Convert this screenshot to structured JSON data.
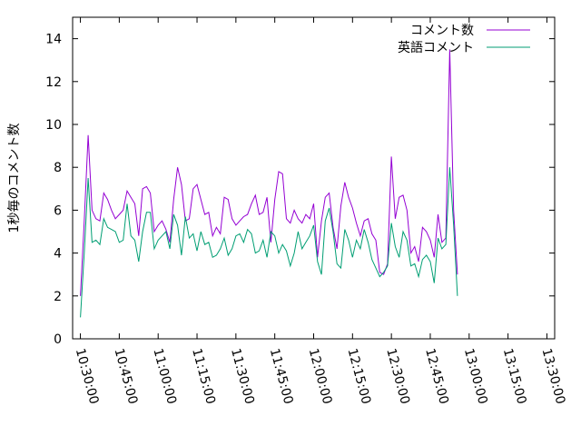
{
  "chart_data": {
    "type": "line",
    "ylabel": "1秒毎のコメント数",
    "ylim": [
      0,
      15
    ],
    "yticks": [
      0,
      2,
      4,
      6,
      8,
      10,
      12,
      14
    ],
    "xticks": [
      "10:30:00",
      "10:45:00",
      "11:00:00",
      "11:15:00",
      "11:30:00",
      "11:45:00",
      "12:00:00",
      "12:15:00",
      "12:30:00",
      "12:45:00",
      "13:00:00",
      "13:15:00",
      "13:30:00"
    ],
    "xlim": [
      "10:27:00",
      "13:33:00"
    ],
    "legend_position": "top-right",
    "grid": false,
    "series": [
      {
        "name": "コメント数",
        "color": "#9400d3",
        "points": [
          [
            "10:30:00",
            2.0
          ],
          [
            "10:31:30",
            5.5
          ],
          [
            "10:33:00",
            9.5
          ],
          [
            "10:34:30",
            6.0
          ],
          [
            "10:36:00",
            5.6
          ],
          [
            "10:37:30",
            5.5
          ],
          [
            "10:39:00",
            6.8
          ],
          [
            "10:40:30",
            6.5
          ],
          [
            "10:42:00",
            6.0
          ],
          [
            "10:43:30",
            5.6
          ],
          [
            "10:45:00",
            5.8
          ],
          [
            "10:46:30",
            6.0
          ],
          [
            "10:48:00",
            6.9
          ],
          [
            "10:49:30",
            6.6
          ],
          [
            "10:51:00",
            6.3
          ],
          [
            "10:52:30",
            4.8
          ],
          [
            "10:54:00",
            7.0
          ],
          [
            "10:55:30",
            7.1
          ],
          [
            "10:57:00",
            6.8
          ],
          [
            "10:58:30",
            5.0
          ],
          [
            "11:00:00",
            5.3
          ],
          [
            "11:01:30",
            5.5
          ],
          [
            "11:03:00",
            5.1
          ],
          [
            "11:04:30",
            4.5
          ],
          [
            "11:06:00",
            6.5
          ],
          [
            "11:07:30",
            8.0
          ],
          [
            "11:09:00",
            7.2
          ],
          [
            "11:10:30",
            5.5
          ],
          [
            "11:12:00",
            5.6
          ],
          [
            "11:13:30",
            7.0
          ],
          [
            "11:15:00",
            7.2
          ],
          [
            "11:16:30",
            6.5
          ],
          [
            "11:18:00",
            5.8
          ],
          [
            "11:19:30",
            5.9
          ],
          [
            "11:21:00",
            4.8
          ],
          [
            "11:22:30",
            5.2
          ],
          [
            "11:24:00",
            4.9
          ],
          [
            "11:25:30",
            6.6
          ],
          [
            "11:27:00",
            6.5
          ],
          [
            "11:28:30",
            5.6
          ],
          [
            "11:30:00",
            5.3
          ],
          [
            "11:31:30",
            5.5
          ],
          [
            "11:33:00",
            5.7
          ],
          [
            "11:34:30",
            5.8
          ],
          [
            "11:36:00",
            6.3
          ],
          [
            "11:37:30",
            6.7
          ],
          [
            "11:39:00",
            5.8
          ],
          [
            "11:40:30",
            5.9
          ],
          [
            "11:42:00",
            6.6
          ],
          [
            "11:43:30",
            4.5
          ],
          [
            "11:45:00",
            6.5
          ],
          [
            "11:46:30",
            7.8
          ],
          [
            "11:48:00",
            7.7
          ],
          [
            "11:49:30",
            5.6
          ],
          [
            "11:51:00",
            5.4
          ],
          [
            "11:52:30",
            6.0
          ],
          [
            "11:54:00",
            5.6
          ],
          [
            "11:55:30",
            5.4
          ],
          [
            "11:57:00",
            5.8
          ],
          [
            "11:58:30",
            5.6
          ],
          [
            "12:00:00",
            6.3
          ],
          [
            "12:01:30",
            3.8
          ],
          [
            "12:03:00",
            5.5
          ],
          [
            "12:04:30",
            6.6
          ],
          [
            "12:06:00",
            6.8
          ],
          [
            "12:07:30",
            5.2
          ],
          [
            "12:09:00",
            4.2
          ],
          [
            "12:10:30",
            6.2
          ],
          [
            "12:12:00",
            7.3
          ],
          [
            "12:13:30",
            6.6
          ],
          [
            "12:15:00",
            6.1
          ],
          [
            "12:16:30",
            5.4
          ],
          [
            "12:18:00",
            4.8
          ],
          [
            "12:19:30",
            5.5
          ],
          [
            "12:21:00",
            5.6
          ],
          [
            "12:22:30",
            4.9
          ],
          [
            "12:24:00",
            4.6
          ],
          [
            "12:25:30",
            3.1
          ],
          [
            "12:27:00",
            3.0
          ],
          [
            "12:28:30",
            3.5
          ],
          [
            "12:30:00",
            8.5
          ],
          [
            "12:31:30",
            5.6
          ],
          [
            "12:33:00",
            6.6
          ],
          [
            "12:34:30",
            6.7
          ],
          [
            "12:36:00",
            6.0
          ],
          [
            "12:37:30",
            4.0
          ],
          [
            "12:39:00",
            4.3
          ],
          [
            "12:40:30",
            3.6
          ],
          [
            "12:42:00",
            5.2
          ],
          [
            "12:43:30",
            5.0
          ],
          [
            "12:45:00",
            4.6
          ],
          [
            "12:46:30",
            3.8
          ],
          [
            "12:48:00",
            5.8
          ],
          [
            "12:49:30",
            4.5
          ],
          [
            "12:51:00",
            4.7
          ],
          [
            "12:52:30",
            13.5
          ],
          [
            "12:54:00",
            6.0
          ],
          [
            "12:55:30",
            3.0
          ]
        ]
      },
      {
        "name": "英語コメント",
        "color": "#009e73",
        "points": [
          [
            "10:30:00",
            1.0
          ],
          [
            "10:31:30",
            4.0
          ],
          [
            "10:33:00",
            7.5
          ],
          [
            "10:34:30",
            4.5
          ],
          [
            "10:36:00",
            4.6
          ],
          [
            "10:37:30",
            4.4
          ],
          [
            "10:39:00",
            5.6
          ],
          [
            "10:40:30",
            5.2
          ],
          [
            "10:42:00",
            5.1
          ],
          [
            "10:43:30",
            5.0
          ],
          [
            "10:45:00",
            4.5
          ],
          [
            "10:46:30",
            4.6
          ],
          [
            "10:48:00",
            6.3
          ],
          [
            "10:49:30",
            4.8
          ],
          [
            "10:51:00",
            4.6
          ],
          [
            "10:52:30",
            3.6
          ],
          [
            "10:54:00",
            5.0
          ],
          [
            "10:55:30",
            5.9
          ],
          [
            "10:57:00",
            5.9
          ],
          [
            "10:58:30",
            4.2
          ],
          [
            "11:00:00",
            4.6
          ],
          [
            "11:01:30",
            4.8
          ],
          [
            "11:03:00",
            5.0
          ],
          [
            "11:04:30",
            4.2
          ],
          [
            "11:06:00",
            5.8
          ],
          [
            "11:07:30",
            5.3
          ],
          [
            "11:09:00",
            3.9
          ],
          [
            "11:10:30",
            5.7
          ],
          [
            "11:12:00",
            4.7
          ],
          [
            "11:13:30",
            4.9
          ],
          [
            "11:15:00",
            4.1
          ],
          [
            "11:16:30",
            5.0
          ],
          [
            "11:18:00",
            4.4
          ],
          [
            "11:19:30",
            4.5
          ],
          [
            "11:21:00",
            3.8
          ],
          [
            "11:22:30",
            3.9
          ],
          [
            "11:24:00",
            4.2
          ],
          [
            "11:25:30",
            4.7
          ],
          [
            "11:27:00",
            3.9
          ],
          [
            "11:28:30",
            4.2
          ],
          [
            "11:30:00",
            4.8
          ],
          [
            "11:31:30",
            4.9
          ],
          [
            "11:33:00",
            4.5
          ],
          [
            "11:34:30",
            5.1
          ],
          [
            "11:36:00",
            4.9
          ],
          [
            "11:37:30",
            4.0
          ],
          [
            "11:39:00",
            4.1
          ],
          [
            "11:40:30",
            4.6
          ],
          [
            "11:42:00",
            3.8
          ],
          [
            "11:43:30",
            5.0
          ],
          [
            "11:45:00",
            4.8
          ],
          [
            "11:46:30",
            4.0
          ],
          [
            "11:48:00",
            4.4
          ],
          [
            "11:49:30",
            4.1
          ],
          [
            "11:51:00",
            3.4
          ],
          [
            "11:52:30",
            4.0
          ],
          [
            "11:54:00",
            5.0
          ],
          [
            "11:55:30",
            4.2
          ],
          [
            "11:57:00",
            4.5
          ],
          [
            "11:58:30",
            4.8
          ],
          [
            "12:00:00",
            5.3
          ],
          [
            "12:01:30",
            3.6
          ],
          [
            "12:03:00",
            3.0
          ],
          [
            "12:04:30",
            5.5
          ],
          [
            "12:06:00",
            6.1
          ],
          [
            "12:07:30",
            5.0
          ],
          [
            "12:09:00",
            3.5
          ],
          [
            "12:10:30",
            3.3
          ],
          [
            "12:12:00",
            5.1
          ],
          [
            "12:13:30",
            4.6
          ],
          [
            "12:15:00",
            3.8
          ],
          [
            "12:16:30",
            4.6
          ],
          [
            "12:18:00",
            4.2
          ],
          [
            "12:19:30",
            5.1
          ],
          [
            "12:21:00",
            4.5
          ],
          [
            "12:22:30",
            3.7
          ],
          [
            "12:24:00",
            3.3
          ],
          [
            "12:25:30",
            2.9
          ],
          [
            "12:27:00",
            3.1
          ],
          [
            "12:28:30",
            3.4
          ],
          [
            "12:30:00",
            5.4
          ],
          [
            "12:31:30",
            4.3
          ],
          [
            "12:33:00",
            3.8
          ],
          [
            "12:34:30",
            5.0
          ],
          [
            "12:36:00",
            4.6
          ],
          [
            "12:37:30",
            3.4
          ],
          [
            "12:39:00",
            3.5
          ],
          [
            "12:40:30",
            2.9
          ],
          [
            "12:42:00",
            3.7
          ],
          [
            "12:43:30",
            3.9
          ],
          [
            "12:45:00",
            3.6
          ],
          [
            "12:46:30",
            2.6
          ],
          [
            "12:48:00",
            4.7
          ],
          [
            "12:49:30",
            4.2
          ],
          [
            "12:51:00",
            4.4
          ],
          [
            "12:52:30",
            8.0
          ],
          [
            "12:54:00",
            5.3
          ],
          [
            "12:55:30",
            2.0
          ]
        ]
      }
    ]
  }
}
